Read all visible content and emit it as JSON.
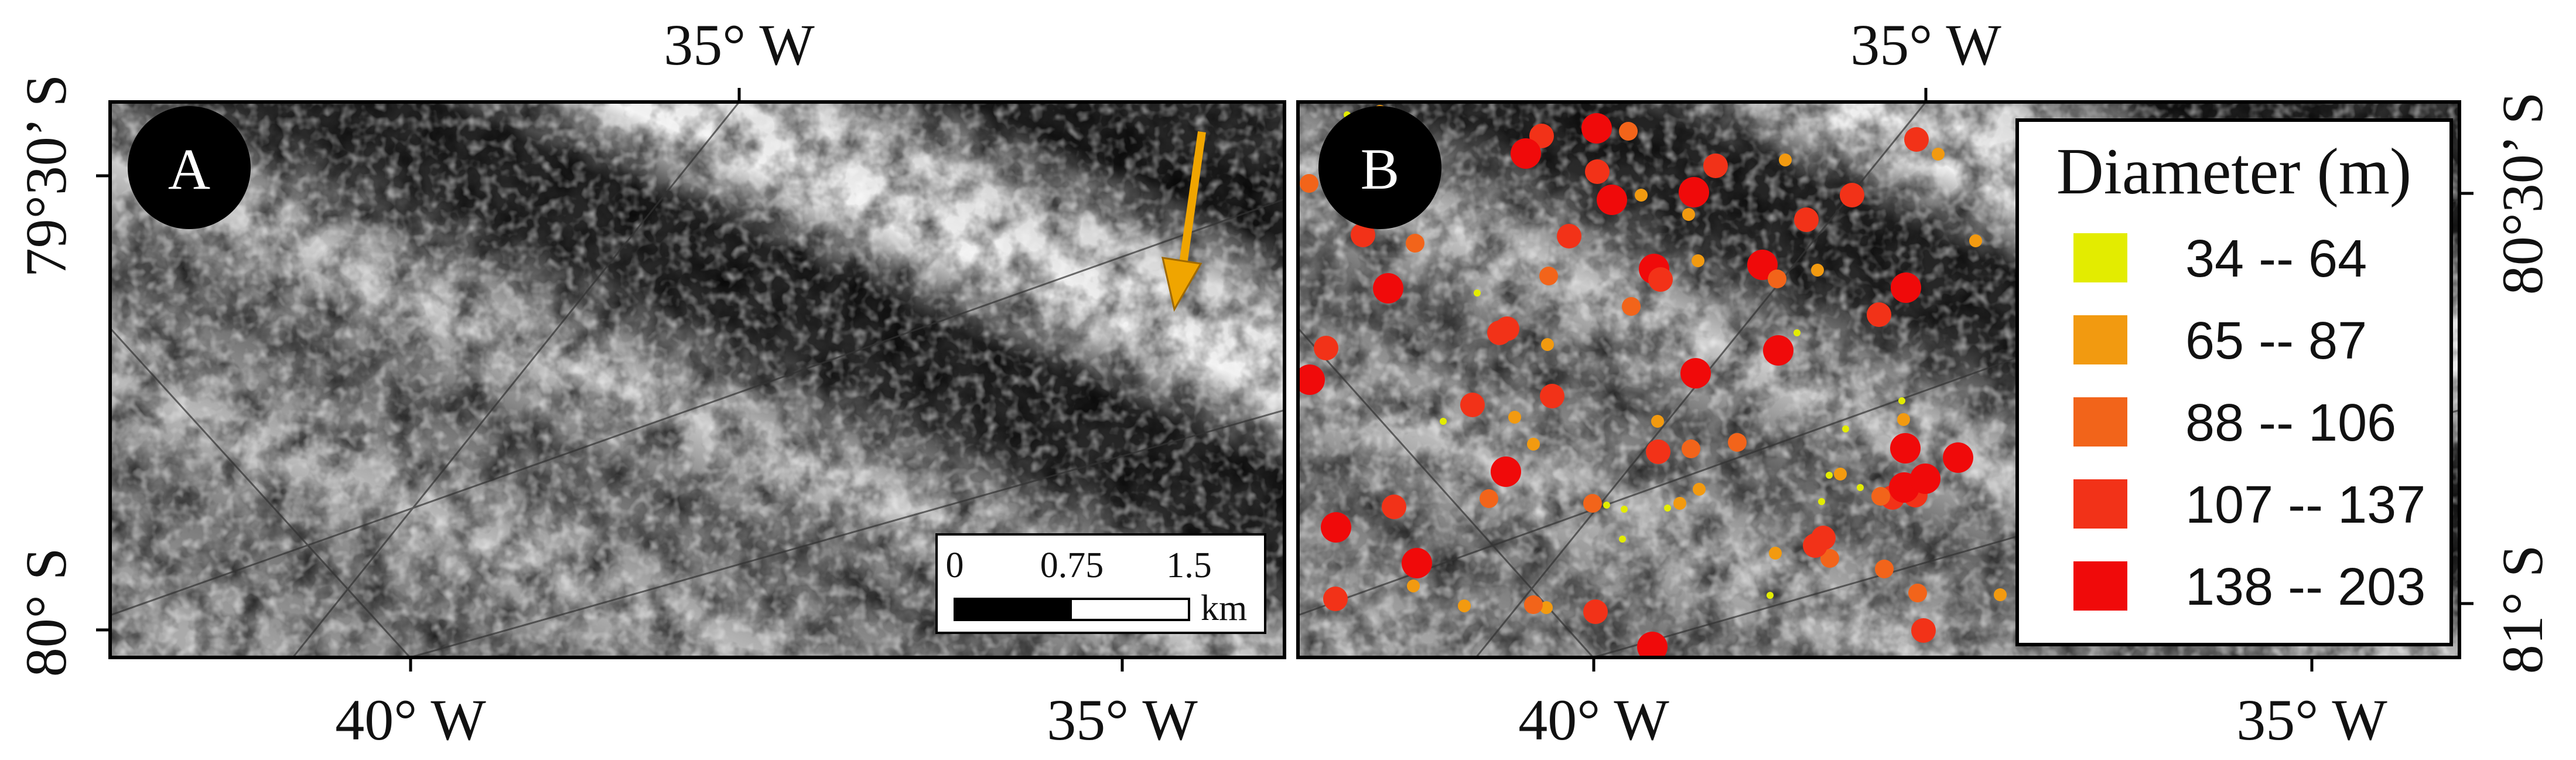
{
  "panels": [
    {
      "label": "A",
      "top_labels": [
        "35° W"
      ],
      "bottom_labels": [
        "40° W",
        "35° W"
      ],
      "side_labels": [
        "79°30’ S",
        "80° S"
      ],
      "scale_bar": {
        "ticks": [
          "0",
          "0.75",
          "1.5"
        ],
        "unit": "km"
      }
    },
    {
      "label": "B",
      "top_labels": [
        "35° W"
      ],
      "bottom_labels": [
        "40° W",
        "35° W"
      ],
      "side_labels": [
        "80°30’ S",
        "81° S"
      ],
      "legend": {
        "title": "Diameter (m)",
        "entries": [
          {
            "label": "34 -- 64",
            "color": "#e3ec00"
          },
          {
            "label": "65 -- 87",
            "color": "#f29a10"
          },
          {
            "label": "88 -- 106",
            "color": "#f2641a"
          },
          {
            "label": "107 -- 137",
            "color": "#f23218"
          },
          {
            "label": "138 -- 203",
            "color": "#f00a0a"
          }
        ]
      }
    }
  ]
}
